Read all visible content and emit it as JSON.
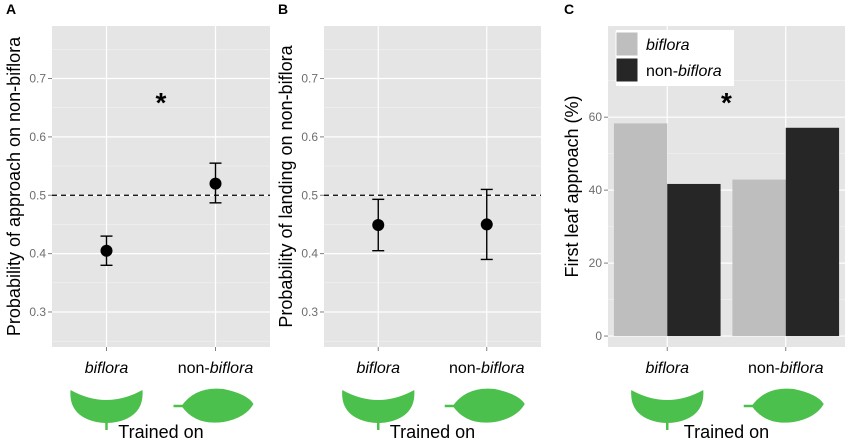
{
  "chart_data": [
    {
      "panel": "A",
      "type": "scatter",
      "ylabel": "Probability of approach on non-biflora",
      "xlabel": "Trained on",
      "categories": [
        {
          "italic": "biflora",
          "plain": ""
        },
        {
          "plain": "non-",
          "italic": "biflora"
        }
      ],
      "values": [
        0.405,
        0.52
      ],
      "err_low": [
        0.38,
        0.487
      ],
      "err_high": [
        0.43,
        0.555
      ],
      "ylim": [
        0.24,
        0.79
      ],
      "yticks": [
        0.3,
        0.4,
        0.5,
        0.6,
        0.7
      ],
      "ytick_labels": [
        "0.3",
        "0.4",
        "0.5",
        "0.6",
        "0.7"
      ],
      "reference_line": 0.5,
      "annotation": "*"
    },
    {
      "panel": "B",
      "type": "scatter",
      "ylabel": "Probability of landing on non-biflora",
      "xlabel": "Trained on",
      "categories": [
        {
          "italic": "biflora",
          "plain": ""
        },
        {
          "plain": "non-",
          "italic": "biflora"
        }
      ],
      "values": [
        0.449,
        0.45
      ],
      "err_low": [
        0.405,
        0.39
      ],
      "err_high": [
        0.493,
        0.51
      ],
      "ylim": [
        0.24,
        0.79
      ],
      "yticks": [
        0.3,
        0.4,
        0.5,
        0.6,
        0.7
      ],
      "ytick_labels": [
        "0.3",
        "0.4",
        "0.5",
        "0.6",
        "0.7"
      ],
      "reference_line": 0.5
    },
    {
      "panel": "C",
      "type": "bar",
      "ylabel": "First leaf approach (%)",
      "xlabel": "Trained on",
      "categories": [
        {
          "italic": "biflora",
          "plain": ""
        },
        {
          "plain": "non-",
          "italic": "biflora"
        }
      ],
      "series": [
        {
          "name": "biflora",
          "name_parts": [
            {
              "italic": "biflora"
            }
          ],
          "color": "#bebebe",
          "values": [
            58.3,
            42.9
          ]
        },
        {
          "name": "non-biflora",
          "name_parts": [
            {
              "plain": "non-"
            },
            {
              "italic": "biflora"
            }
          ],
          "color": "#262626",
          "values": [
            41.7,
            57.1
          ]
        }
      ],
      "ylim": [
        -3.0,
        85
      ],
      "yticks": [
        0,
        20,
        40,
        60
      ],
      "ytick_labels": [
        "0",
        "20",
        "40",
        "60"
      ],
      "legend": "top-left",
      "annotation": "*"
    }
  ],
  "colors": {
    "panel_background": "#e5e5e5",
    "leaf": "#4cc04c"
  }
}
